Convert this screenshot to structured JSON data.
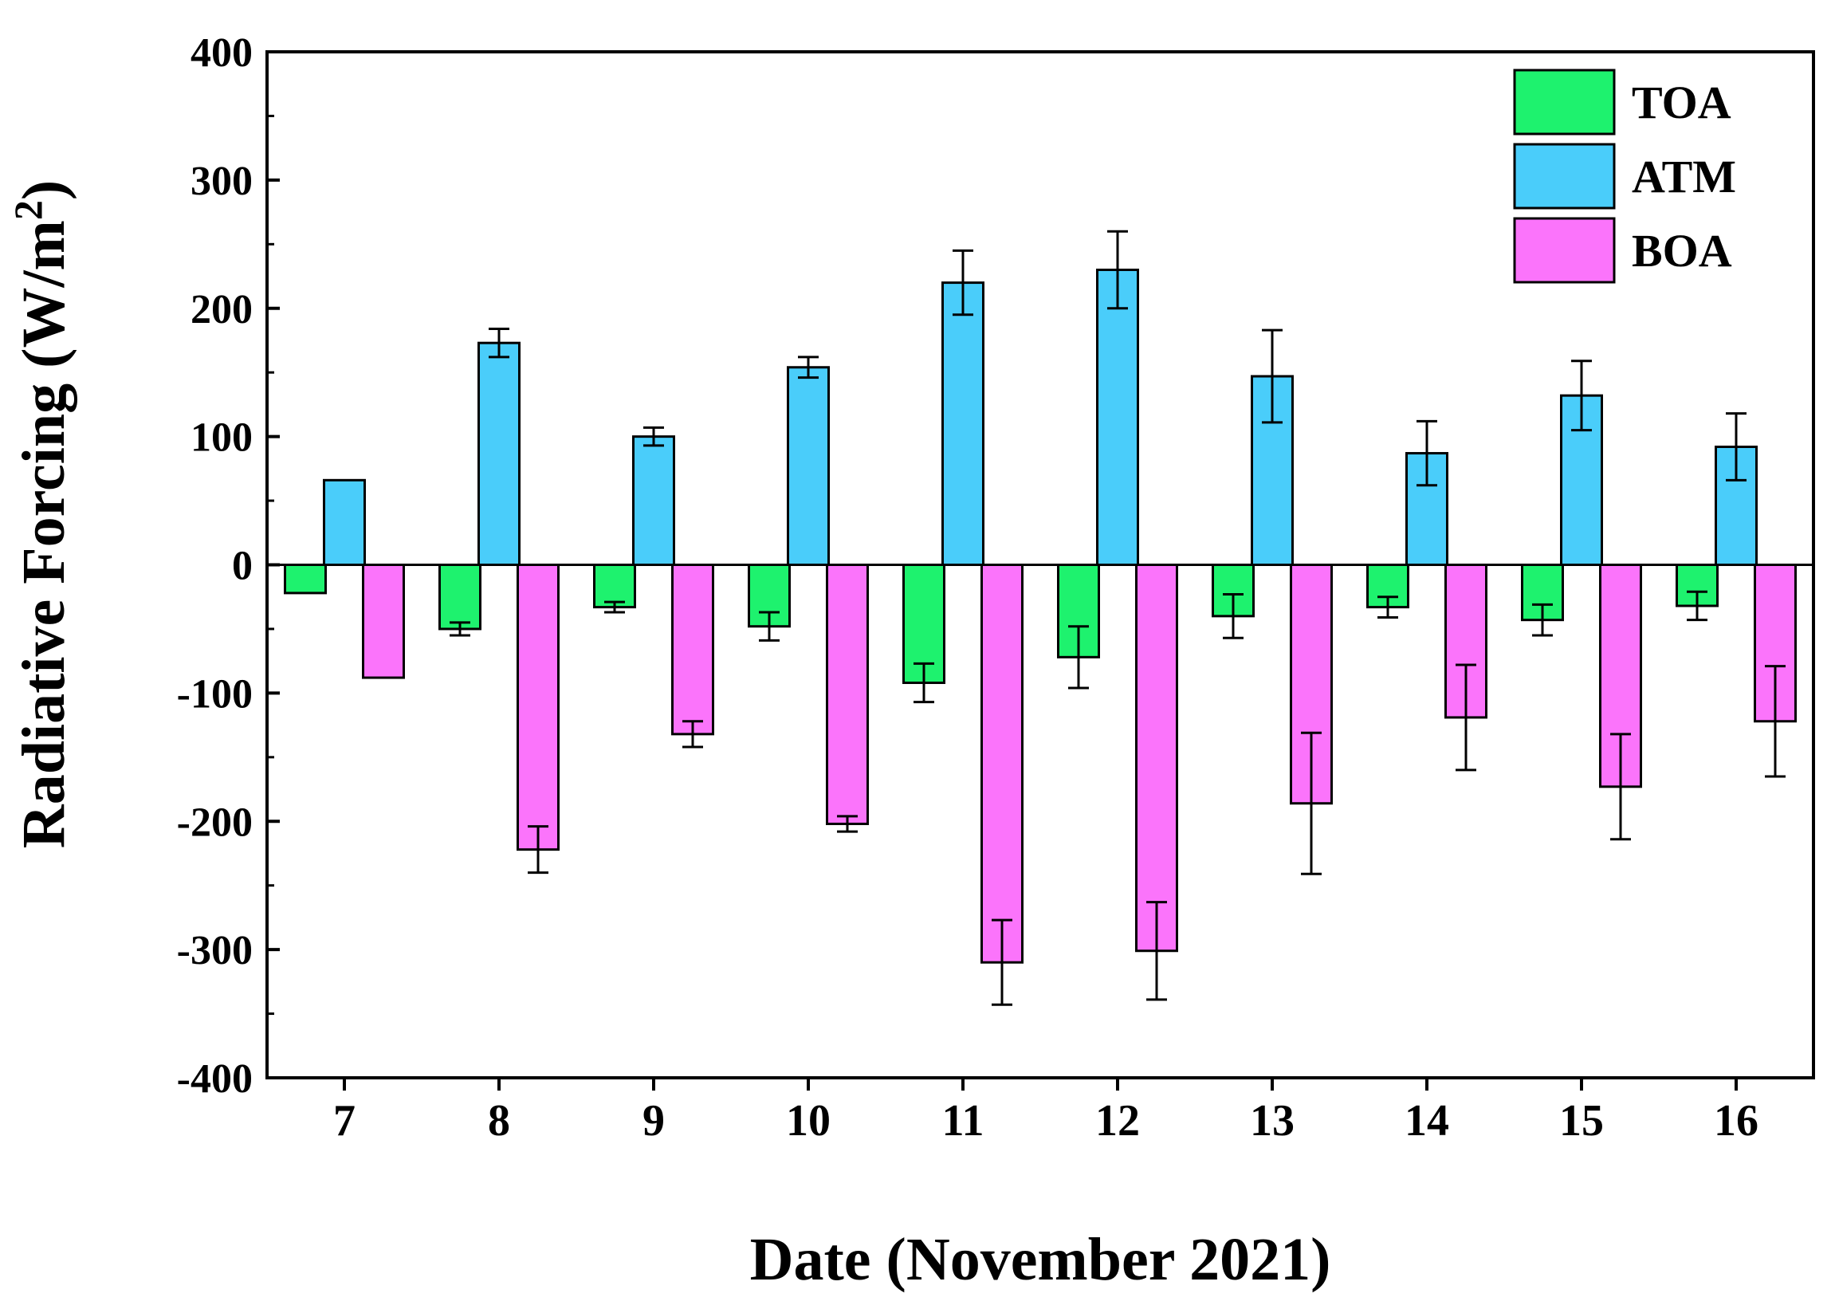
{
  "chart_data": {
    "type": "bar",
    "title": "",
    "xlabel": "Date (November 2021)",
    "ylabel": "Radiative Forcing (W/m",
    "ylabel_superscript": "2",
    "ylabel_suffix": ")",
    "ylim": [
      -400,
      400
    ],
    "yticks": [
      400,
      300,
      200,
      100,
      0,
      -100,
      -200,
      -300,
      -400
    ],
    "categories": [
      "7",
      "8",
      "9",
      "10",
      "11",
      "12",
      "13",
      "14",
      "15",
      "16"
    ],
    "legend_position": "top-right",
    "series": [
      {
        "name": "TOA",
        "color": "#1ef26e",
        "values": [
          -22,
          -50,
          -33,
          -48,
          -92,
          -72,
          -40,
          -33,
          -43,
          -32
        ],
        "errors": [
          0,
          5,
          4,
          11,
          15,
          24,
          17,
          8,
          12,
          11
        ]
      },
      {
        "name": "ATM",
        "color": "#4acdfa",
        "values": [
          66,
          173,
          100,
          154,
          220,
          230,
          147,
          87,
          132,
          92
        ],
        "errors": [
          0,
          11,
          7,
          8,
          25,
          30,
          36,
          25,
          27,
          26
        ]
      },
      {
        "name": "BOA",
        "color": "#fb74fb",
        "values": [
          -88,
          -222,
          -132,
          -202,
          -310,
          -301,
          -186,
          -119,
          -173,
          -122
        ],
        "errors": [
          0,
          18,
          10,
          6,
          33,
          38,
          55,
          41,
          41,
          43
        ]
      }
    ]
  }
}
